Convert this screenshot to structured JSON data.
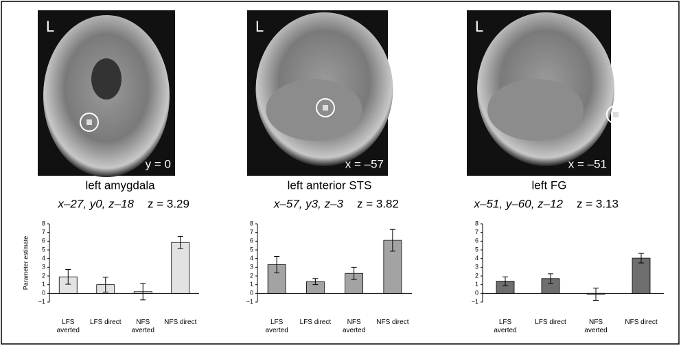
{
  "chart_data": [
    {
      "type": "bar",
      "title": "left amygdala",
      "coordinates": "x–27, y0, z–18",
      "z_score": "z = 3.29",
      "image": {
        "orientation": "L",
        "slice": "y = 0"
      },
      "ylabel": "Parameter estimate",
      "categories": [
        "LFS\naverted",
        "LFS direct",
        "NFS\naverted",
        "NFS direct"
      ],
      "values": [
        1.9,
        1.0,
        0.2,
        5.85
      ],
      "errors": [
        0.85,
        0.85,
        0.95,
        0.7
      ],
      "color": "#e2e2e2",
      "ylim": [
        -1,
        8
      ],
      "yticks": [
        {
          "value": -1,
          "label": "−1"
        },
        0,
        1,
        2,
        3,
        4,
        5,
        6,
        7,
        8
      ]
    },
    {
      "type": "bar",
      "title": "left anterior STS",
      "coordinates": "x–57, y3, z–3",
      "z_score": "z = 3.82",
      "image": {
        "orientation": "L",
        "slice": "x = –57"
      },
      "categories": [
        "LFS\naverted",
        "LFS direct",
        "NFS\naverted",
        "NFS direct"
      ],
      "values": [
        3.3,
        1.35,
        2.3,
        6.1
      ],
      "errors": [
        0.95,
        0.35,
        0.7,
        1.25
      ],
      "color": "#a3a3a3",
      "ylim": [
        -1,
        8
      ],
      "yticks": [
        {
          "value": -1,
          "label": "−1"
        },
        0,
        1,
        2,
        3,
        4,
        5,
        6,
        7,
        8
      ]
    },
    {
      "type": "bar",
      "title": "left FG",
      "coordinates": "x–51, y–60, z–12",
      "z_score": "z = 3.13",
      "image": {
        "orientation": "L",
        "slice": "x = –51"
      },
      "categories": [
        "LFS\naverted",
        "LFS direct",
        "NFS\naverted",
        "NFS direct"
      ],
      "values": [
        1.4,
        1.7,
        -0.1,
        4.05
      ],
      "errors": [
        0.5,
        0.55,
        0.7,
        0.55
      ],
      "color": "#6e6e6e",
      "ylim": [
        -1,
        8
      ],
      "yticks": [
        {
          "value": -1,
          "label": "−1"
        },
        0,
        1,
        2,
        3,
        4,
        5,
        6,
        7,
        8
      ]
    }
  ]
}
